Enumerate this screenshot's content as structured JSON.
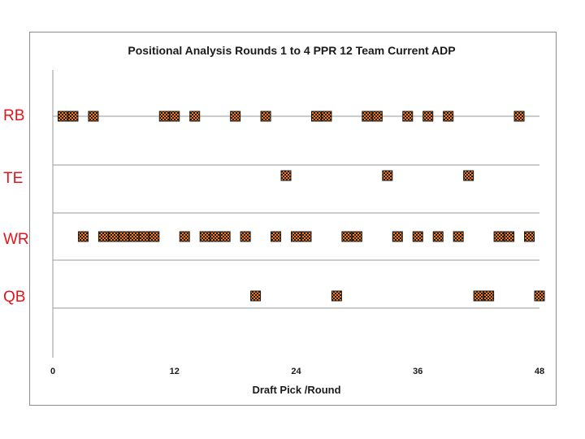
{
  "chart_data": {
    "type": "scatter",
    "title": "Positional Analysis Rounds 1 to 4  PPR 12 Team Current ADP",
    "xlabel": "Draft Pick /Round",
    "xlim": [
      0,
      48
    ],
    "x_ticks": [
      0,
      12,
      24,
      36,
      48
    ],
    "categories": [
      "RB",
      "TE",
      "WR",
      "QB"
    ],
    "marker_colors": {
      "fill": "#f47b20",
      "check": "#1a1a1a"
    },
    "series": [
      {
        "name": "RB",
        "x": [
          1,
          2,
          4,
          11,
          12,
          14,
          18,
          21,
          26,
          27,
          31,
          32,
          35,
          37,
          39,
          46
        ]
      },
      {
        "name": "TE",
        "x": [
          23,
          33,
          41
        ]
      },
      {
        "name": "WR",
        "x": [
          3,
          5,
          6,
          7,
          8,
          9,
          10,
          13,
          15,
          16,
          17,
          19,
          22,
          24,
          25,
          29,
          30,
          34,
          36,
          38,
          40,
          44,
          45,
          47
        ]
      },
      {
        "name": "QB",
        "x": [
          20,
          28,
          42,
          43,
          48
        ]
      }
    ]
  }
}
